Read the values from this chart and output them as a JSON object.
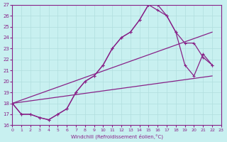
{
  "xlabel": "Windchill (Refroidissement éolien,°C)",
  "bg_color": "#c8f0f0",
  "grid_color": "#b0dede",
  "line_color": "#882288",
  "xlim": [
    0,
    23
  ],
  "ylim": [
    16,
    27
  ],
  "xticks": [
    0,
    1,
    2,
    3,
    4,
    5,
    6,
    7,
    8,
    9,
    10,
    11,
    12,
    13,
    14,
    15,
    16,
    17,
    18,
    19,
    20,
    21,
    22,
    23
  ],
  "yticks": [
    16,
    17,
    18,
    19,
    20,
    21,
    22,
    23,
    24,
    25,
    26,
    27
  ],
  "line1_x": [
    0,
    1,
    2,
    3,
    4,
    5,
    6,
    7,
    8,
    9,
    10,
    11,
    12,
    13,
    14,
    15,
    16,
    17,
    18,
    19,
    20,
    21,
    22
  ],
  "line1_y": [
    18,
    17,
    17,
    16.7,
    16.5,
    17,
    17.5,
    19.0,
    20.0,
    20.5,
    21.5,
    23.0,
    24.0,
    24.5,
    25.6,
    27.0,
    27.0,
    26.0,
    24.5,
    23.5,
    23.5,
    22.2,
    21.5
  ],
  "line2_x": [
    0,
    1,
    2,
    3,
    4,
    5,
    6,
    7,
    8,
    9,
    10,
    11,
    12,
    13,
    14,
    15,
    16,
    17,
    18,
    19,
    20,
    21,
    22
  ],
  "line2_y": [
    18,
    17,
    17,
    16.7,
    16.5,
    17,
    17.5,
    19.0,
    20.0,
    20.5,
    21.5,
    23.0,
    24.0,
    24.5,
    25.6,
    27.0,
    26.5,
    26.0,
    24.5,
    21.5,
    20.5,
    22.5,
    21.5
  ],
  "line3_x": [
    0,
    22
  ],
  "line3_y": [
    18,
    24.5
  ],
  "line4_x": [
    0,
    22
  ],
  "line4_y": [
    18,
    20.5
  ]
}
